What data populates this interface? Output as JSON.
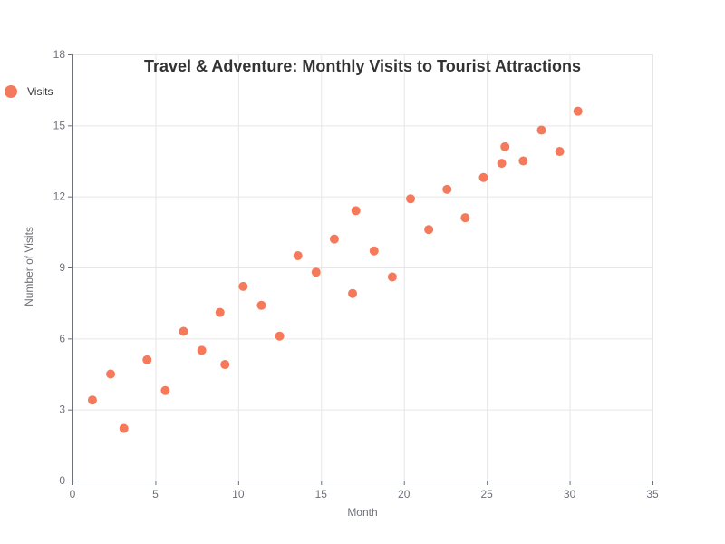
{
  "chart_data": {
    "type": "scatter",
    "title": "Travel & Adventure: Monthly Visits to Tourist Attractions",
    "xlabel": "Month",
    "ylabel": "Number of Visits",
    "xlim": [
      0,
      35
    ],
    "ylim": [
      0,
      18
    ],
    "x_ticks": [
      "0",
      "5",
      "10",
      "15",
      "20",
      "25",
      "30",
      "35"
    ],
    "y_ticks": [
      "0",
      "3",
      "6",
      "9",
      "12",
      "15",
      "18"
    ],
    "grid": true,
    "legend_position": "left",
    "series": [
      {
        "name": "Visits",
        "color": "#f47a5b",
        "points": [
          {
            "x": 1.2,
            "y": 3.4
          },
          {
            "x": 2.3,
            "y": 4.5
          },
          {
            "x": 3.1,
            "y": 2.2
          },
          {
            "x": 4.5,
            "y": 5.1
          },
          {
            "x": 5.6,
            "y": 3.8
          },
          {
            "x": 6.7,
            "y": 6.3
          },
          {
            "x": 7.8,
            "y": 5.5
          },
          {
            "x": 8.9,
            "y": 7.1
          },
          {
            "x": 9.2,
            "y": 4.9
          },
          {
            "x": 10.3,
            "y": 8.2
          },
          {
            "x": 11.4,
            "y": 7.4
          },
          {
            "x": 12.5,
            "y": 6.1
          },
          {
            "x": 13.6,
            "y": 9.5
          },
          {
            "x": 14.7,
            "y": 8.8
          },
          {
            "x": 15.8,
            "y": 10.2
          },
          {
            "x": 16.9,
            "y": 7.9
          },
          {
            "x": 17.1,
            "y": 11.4
          },
          {
            "x": 18.2,
            "y": 9.7
          },
          {
            "x": 19.3,
            "y": 8.6
          },
          {
            "x": 20.4,
            "y": 11.9
          },
          {
            "x": 21.5,
            "y": 10.6
          },
          {
            "x": 22.6,
            "y": 12.3
          },
          {
            "x": 23.7,
            "y": 11.1
          },
          {
            "x": 24.8,
            "y": 12.8
          },
          {
            "x": 25.9,
            "y": 13.4
          },
          {
            "x": 26.1,
            "y": 14.1
          },
          {
            "x": 27.2,
            "y": 13.5
          },
          {
            "x": 28.3,
            "y": 14.8
          },
          {
            "x": 29.4,
            "y": 13.9
          },
          {
            "x": 30.5,
            "y": 15.6
          }
        ]
      }
    ]
  }
}
